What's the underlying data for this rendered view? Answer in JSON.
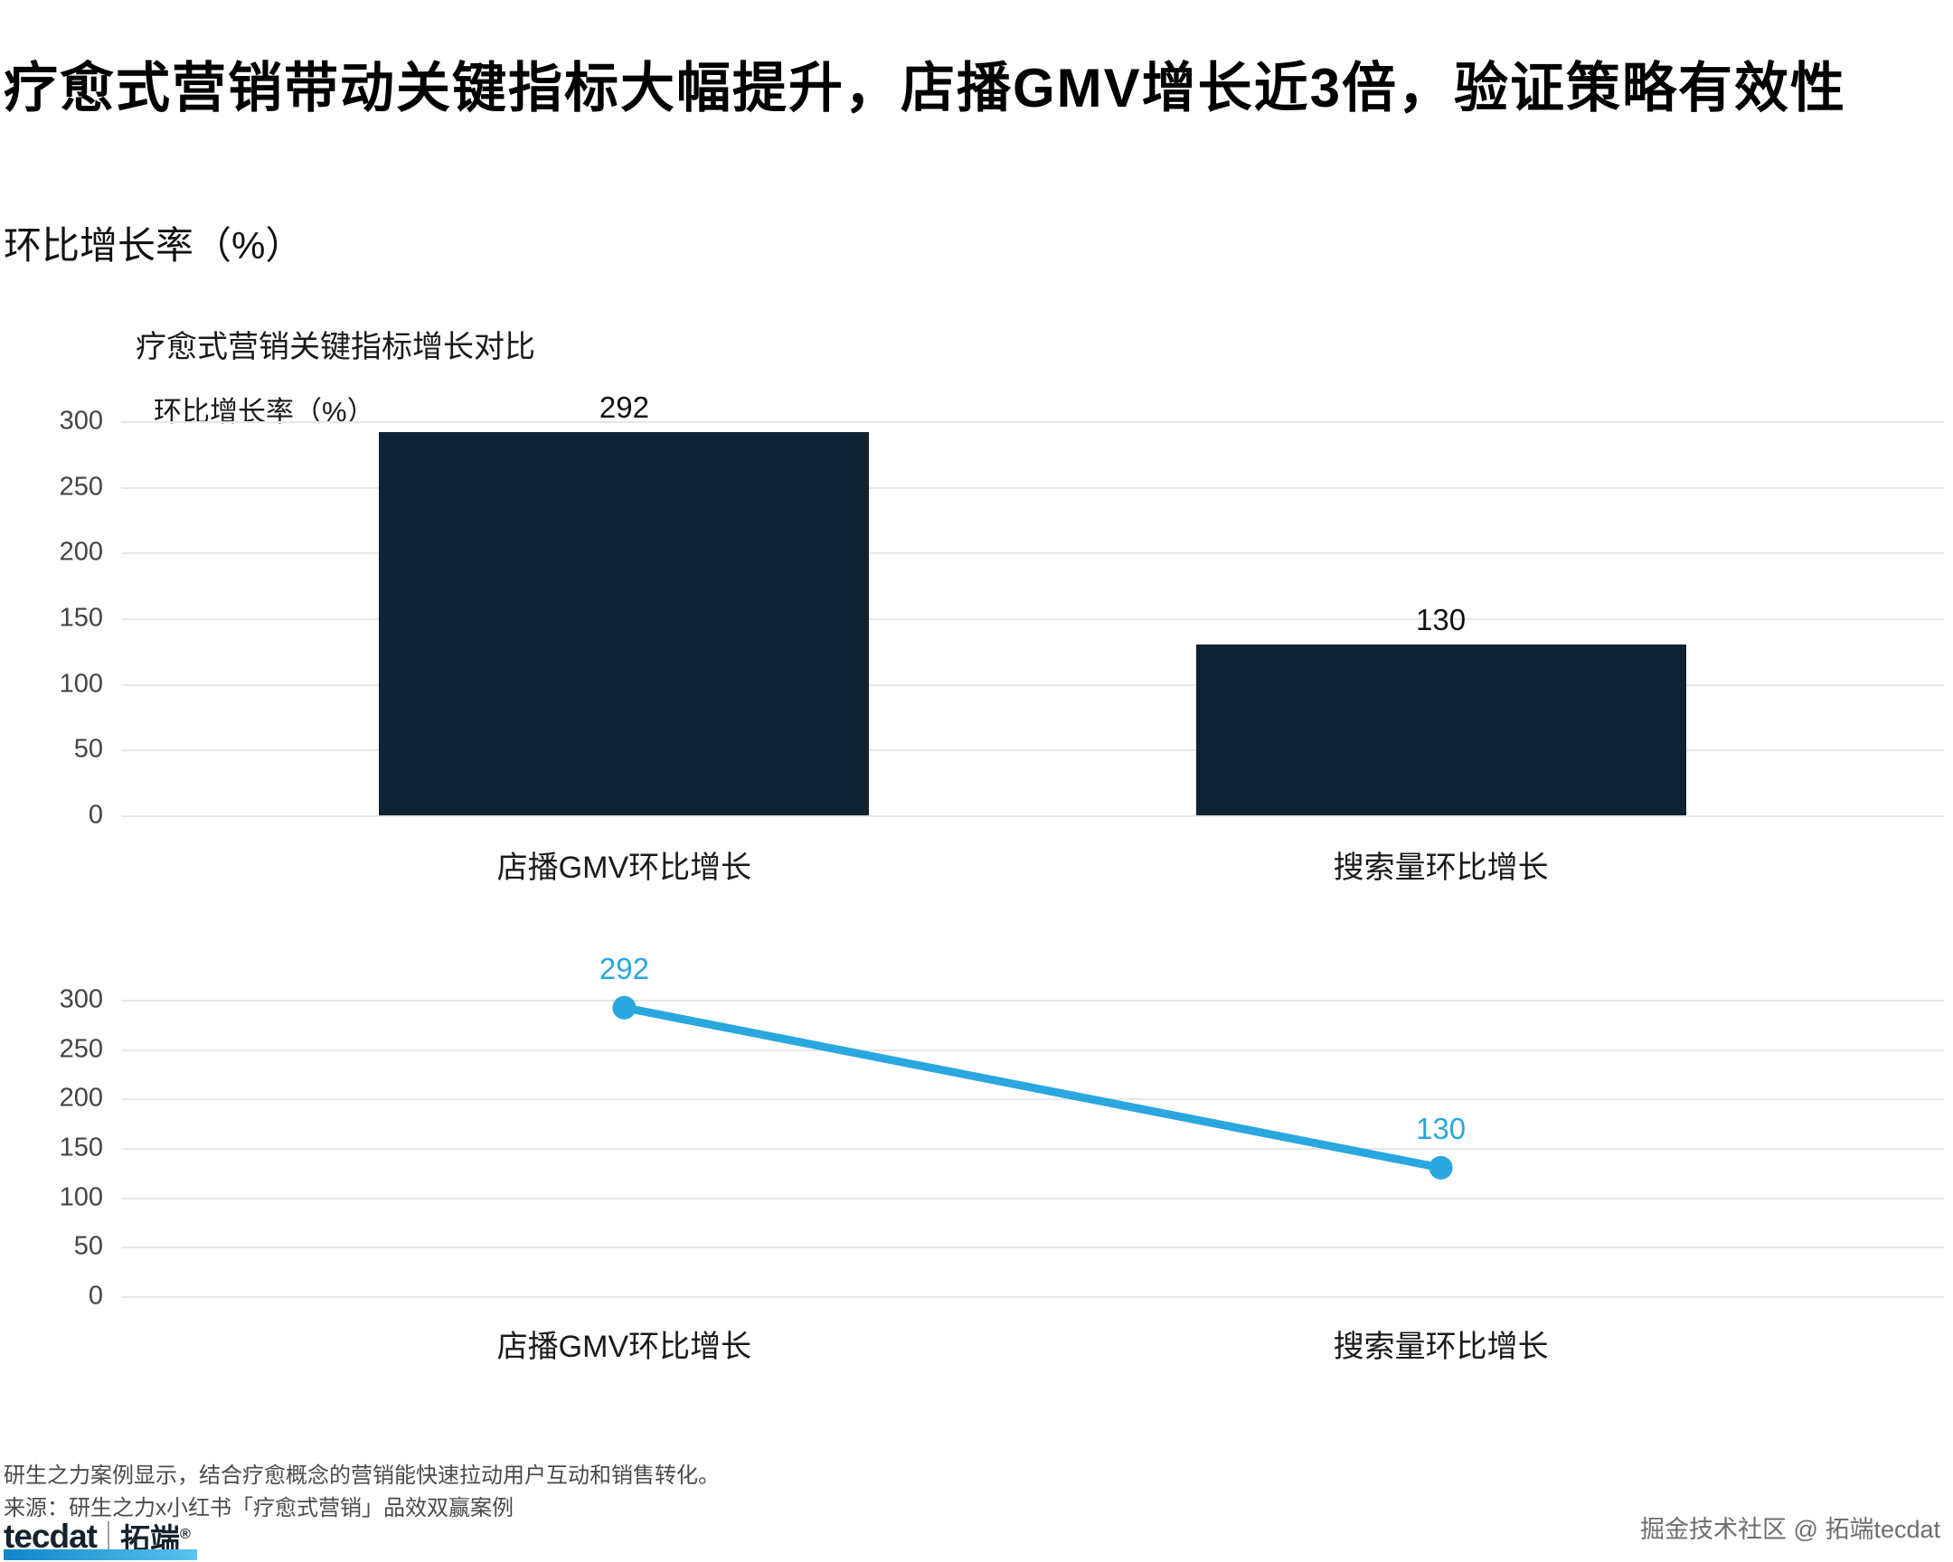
{
  "header": {
    "title": "疗愈式营销带动关键指标大幅提升，店播GMV增长近3倍，验证策略有效性",
    "subtitle": "环比增长率（%）"
  },
  "chart_data": [
    {
      "type": "bar",
      "title": "疗愈式营销关键指标增长对比",
      "axis_label": "环比增长率（%）",
      "categories": [
        "店播GMV环比增长",
        "搜索量环比增长"
      ],
      "values": [
        292,
        130
      ],
      "ylim": [
        0,
        300
      ],
      "yticks": [
        0,
        50,
        100,
        150,
        200,
        250,
        300
      ],
      "bar_color": "#0f2333",
      "grid": true,
      "legend": "none"
    },
    {
      "type": "line",
      "categories": [
        "店播GMV环比增长",
        "搜索量环比增长"
      ],
      "values": [
        292,
        130
      ],
      "ylim": [
        0,
        300
      ],
      "yticks": [
        0,
        50,
        100,
        150,
        200,
        250,
        300
      ],
      "line_color": "#29a7de",
      "grid": true,
      "legend": "none"
    }
  ],
  "footer": {
    "note1": "研生之力案例显示，结合疗愈概念的营销能快速拉动用户互动和销售转化。",
    "note2": "来源：研生之力x小红书「疗愈式营销」品效双赢案例",
    "credit": "掘金技术社区 @ 拓端tecdat"
  },
  "logo": {
    "brand": "tecdat",
    "brand_cn": "拓端",
    "registered": "®",
    "accent_color": "#29a7de"
  }
}
